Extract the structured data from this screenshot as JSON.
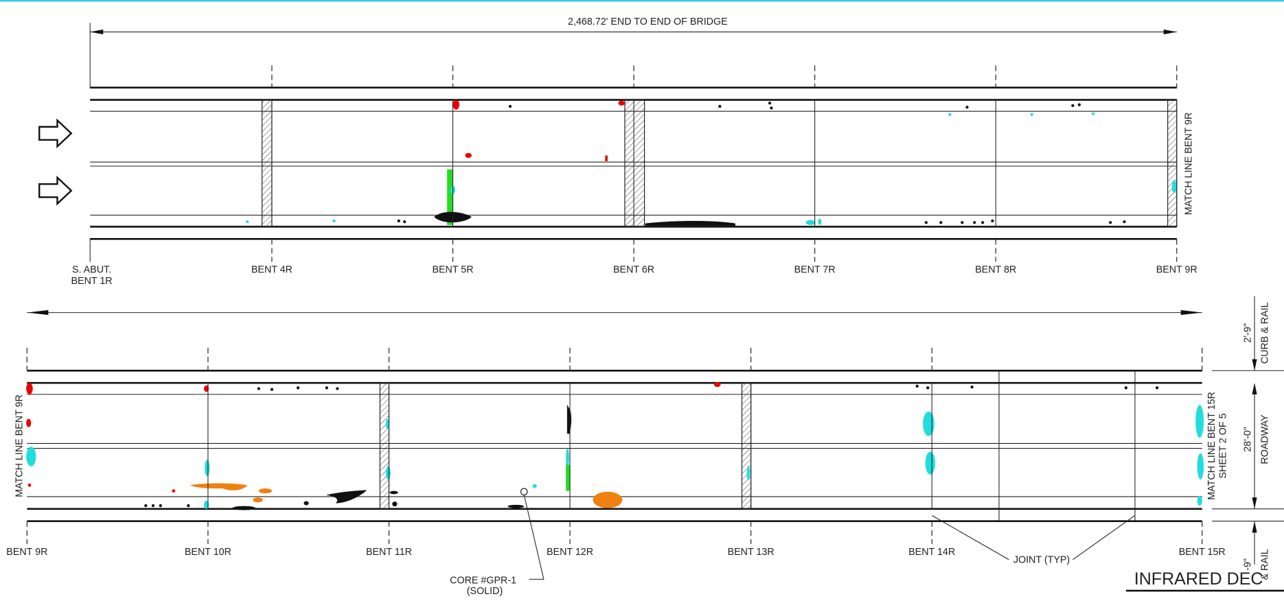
{
  "top_plan": {
    "dimension": "2,468.72' END TO END OF BRIDGE",
    "start_support": [
      "S. ABUT.",
      "BENT 1R"
    ],
    "supports": [
      "BENT 4R",
      "BENT 5R",
      "BENT 6R",
      "BENT 7R",
      "BENT 8R",
      "BENT 9R"
    ],
    "match_line": "MATCH LINE BENT 9R"
  },
  "bottom_plan": {
    "supports": [
      "BENT 9R",
      "BENT 10R",
      "BENT 11R",
      "BENT 12R",
      "BENT 13R",
      "BENT 14R",
      "BENT 15R"
    ],
    "match_line_start": "MATCH LINE BENT 9R",
    "match_line_end": [
      "MATCH LINE BENT 15R",
      "SHEET 2 OF 5"
    ],
    "core": [
      "CORE #GPR-1",
      "(SOLID)"
    ],
    "joint": "JOINT (TYP)",
    "section_dims": [
      {
        "dim": "2'-9\"",
        "label": "CURB & RAIL"
      },
      {
        "dim": "28'-0\"",
        "label": "ROADWAY"
      },
      {
        "dim": "-9\"",
        "label": "& RAIL"
      }
    ]
  },
  "title": "INFRARED DEC"
}
